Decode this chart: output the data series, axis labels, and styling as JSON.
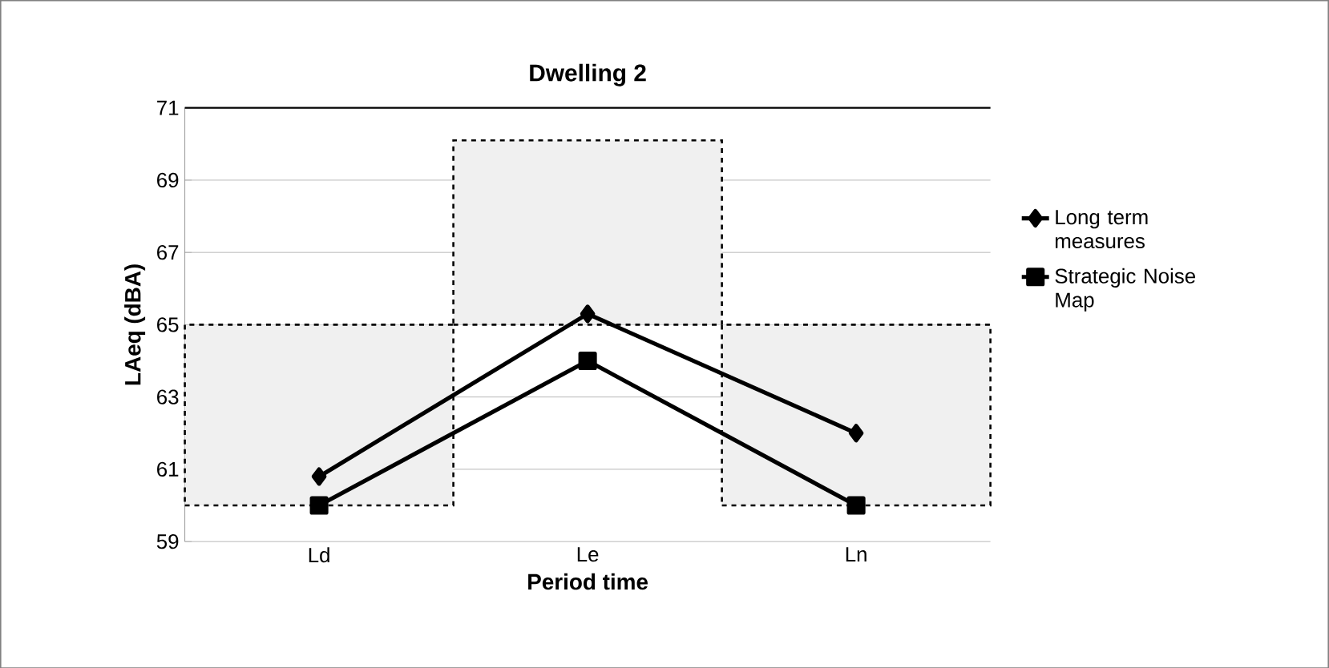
{
  "chart_data": {
    "type": "line",
    "title": "Dwelling 2",
    "xlabel": "Period time",
    "ylabel": "LAeq (dBA)",
    "categories": [
      "Ld",
      "Le",
      "Ln"
    ],
    "series": [
      {
        "type": "bar",
        "color": "#f0f0f0",
        "base": [
          60,
          65,
          60
        ],
        "values": [
          5,
          5.1,
          5
        ],
        "line_style": "dashed"
      },
      {
        "name": "Long term measures",
        "color": "#000000",
        "marker": "diamond",
        "values": [
          60.8,
          65.3,
          62.0
        ]
      },
      {
        "name": "Strategic Noise Map",
        "color": "#000000",
        "marker": "square",
        "values": [
          60.0,
          64.0,
          60.0
        ]
      }
    ],
    "ylim": [
      59,
      71
    ],
    "yticks": [
      59,
      61,
      63,
      65,
      67,
      69,
      71
    ],
    "grid": "y",
    "legend": "right"
  }
}
